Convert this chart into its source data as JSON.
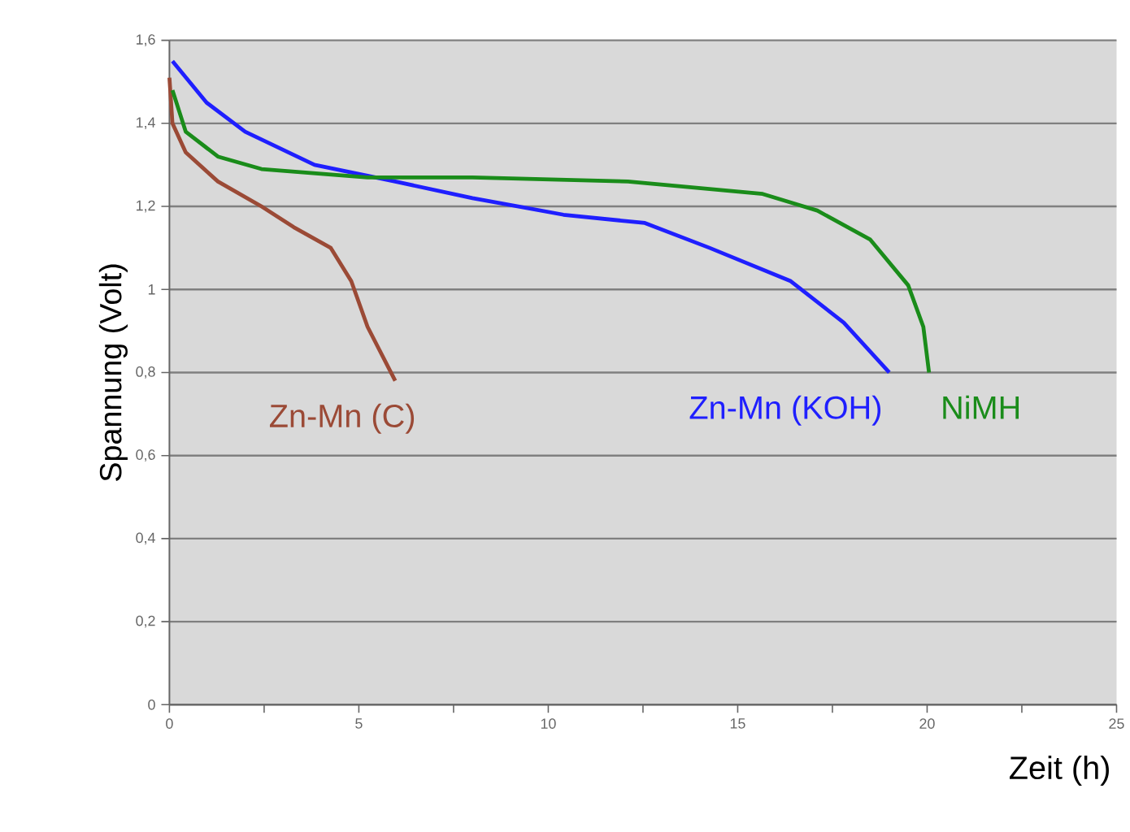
{
  "chart_data": {
    "type": "line",
    "xlabel": "Zeit (h)",
    "ylabel": "Spannung (Volt)",
    "xlim": [
      0,
      25
    ],
    "ylim": [
      0,
      1.6
    ],
    "xticks": [
      0,
      {
        "value": 2.5,
        "label": null
      },
      5,
      {
        "value": 7.5,
        "label": null
      },
      10,
      {
        "value": 12.5,
        "label": null
      },
      15,
      {
        "value": 17.5,
        "label": null
      },
      20,
      {
        "value": 22.5,
        "label": null
      },
      25
    ],
    "yticks": [
      0,
      {
        "value": 0.2,
        "label": "0,2"
      },
      {
        "value": 0.4,
        "label": "0,4"
      },
      {
        "value": 0.6,
        "label": "0,6"
      },
      {
        "value": 0.8,
        "label": "0,8"
      },
      1,
      {
        "value": 1.2,
        "label": "1,2"
      },
      {
        "value": 1.4,
        "label": "1,4"
      },
      {
        "value": 1.6,
        "label": "1,6"
      }
    ],
    "grid": "y",
    "legend": false,
    "marker": "none",
    "line_style": "solid",
    "series": [
      {
        "name": "Zn-Mn (C)",
        "color": "#9b4a36",
        "x": [
          0,
          0.08,
          0.43,
          1.28,
          2.43,
          3.28,
          4.26,
          4.8,
          5.23,
          5.96
        ],
        "values": [
          1.51,
          1.4,
          1.33,
          1.26,
          1.2,
          1.15,
          1.1,
          1.02,
          0.91,
          0.78
        ]
      },
      {
        "name": "Zn-Mn (KOH)",
        "color": "#1f1fff",
        "x": [
          0.08,
          0.98,
          2.0,
          3.83,
          5.96,
          8.0,
          10.4,
          12.55,
          14.26,
          16.4,
          17.8,
          19.0
        ],
        "values": [
          1.55,
          1.45,
          1.38,
          1.3,
          1.26,
          1.22,
          1.18,
          1.16,
          1.1,
          1.02,
          0.92,
          0.8
        ]
      },
      {
        "name": "NiMH",
        "color": "#1a8c1a",
        "x": [
          0.08,
          0.43,
          1.28,
          2.43,
          5.23,
          8.0,
          12.1,
          15.66,
          17.1,
          18.5,
          19.5,
          19.9,
          20.05
        ],
        "values": [
          1.48,
          1.38,
          1.32,
          1.29,
          1.27,
          1.27,
          1.26,
          1.23,
          1.19,
          1.12,
          1.01,
          0.91,
          0.8
        ]
      }
    ]
  }
}
